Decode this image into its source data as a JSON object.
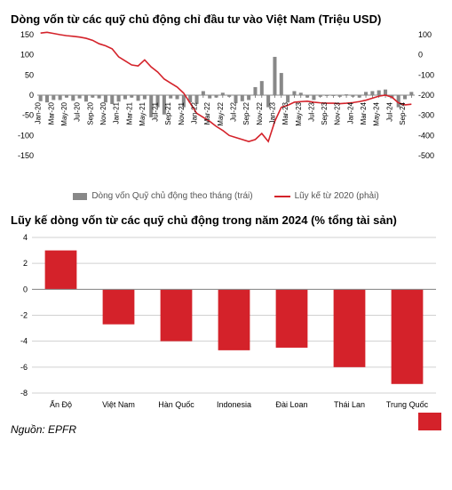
{
  "chart1": {
    "type": "bar+line-dual-axis",
    "title": "Dòng vốn từ các quỹ chủ động chỉ đầu tư vào Việt Nam (Triệu USD)",
    "title_fontsize": 13,
    "background_color": "#ffffff",
    "bar_color": "#888888",
    "line_color": "#d4222a",
    "line_width": 1.6,
    "tick_color": "#5a5a5a",
    "axis_color": "#888888",
    "x_labels": [
      "Jan-20",
      "Mar-20",
      "May-20",
      "Jul-20",
      "Sep-20",
      "Nov-20",
      "Jan-21",
      "Mar-21",
      "May-21",
      "Jul-21",
      "Sep-21",
      "Nov-21",
      "Jan-22",
      "Mar-22",
      "May-22",
      "Jul-22",
      "Sep-22",
      "Nov-22",
      "Jan-23",
      "Mar-23",
      "May-23",
      "Jul-23",
      "Sep-23",
      "Nov-23",
      "Jan-24",
      "Mar-24",
      "May-24",
      "Jul-24",
      "Sep-24"
    ],
    "left_axis": {
      "min": -150,
      "max": 150,
      "step": 50,
      "fontsize": 9
    },
    "right_axis": {
      "min": -500,
      "max": 100,
      "step": 100,
      "fontsize": 9
    },
    "bars": [
      -15,
      -18,
      -12,
      -12,
      -6,
      -14,
      -8,
      -16,
      -6,
      -8,
      -18,
      -22,
      -16,
      -10,
      -6,
      -14,
      -10,
      -55,
      -30,
      -48,
      -8,
      -10,
      -30,
      -18,
      -22,
      10,
      -8,
      -6,
      6,
      -4,
      -20,
      -15,
      -12,
      20,
      35,
      -30,
      95,
      55,
      -18,
      10,
      6,
      -6,
      -12,
      -4,
      -2,
      -2,
      -4,
      2,
      -4,
      -6,
      8,
      10,
      12,
      14,
      -8,
      -30,
      -10,
      8
    ],
    "line": [
      108,
      112,
      106,
      100,
      95,
      92,
      88,
      82,
      72,
      55,
      45,
      30,
      -10,
      -30,
      -50,
      -55,
      -25,
      -60,
      -85,
      -120,
      -140,
      -160,
      -190,
      -240,
      -290,
      -310,
      -330,
      -355,
      -375,
      -400,
      -410,
      -420,
      -430,
      -420,
      -390,
      -430,
      -330,
      -260,
      -250,
      -235,
      -232,
      -230,
      -235,
      -238,
      -240,
      -240,
      -242,
      -240,
      -237,
      -232,
      -225,
      -215,
      -205,
      -200,
      -210,
      -238,
      -248,
      -245
    ],
    "legend": {
      "bar_label": "Dòng vốn Quỹ chủ động theo tháng (trái)",
      "line_label": "Lũy kế từ 2020 (phải)",
      "fontsize": 10
    }
  },
  "chart2": {
    "type": "bar",
    "title": "Lũy kế dòng vốn từ các quỹ chủ động trong năm 2024 (% tổng tài sản)",
    "title_fontsize": 13,
    "background_color": "#ffffff",
    "bar_color": "#d4222a",
    "grid_color": "#d0d0d0",
    "axis_color": "#888888",
    "y_axis": {
      "min": -8,
      "max": 4,
      "step": 2,
      "fontsize": 9
    },
    "categories": [
      "Ấn Độ",
      "Việt Nam",
      "Hàn Quốc",
      "Indonesia",
      "Đài Loan",
      "Thái Lan",
      "Trung Quốc"
    ],
    "values": [
      3.0,
      -2.7,
      -4.0,
      -4.7,
      -4.5,
      -6.0,
      -7.3
    ],
    "bar_width": 0.55,
    "label_fontsize": 9
  },
  "source_label": "Nguồn: EPFR"
}
